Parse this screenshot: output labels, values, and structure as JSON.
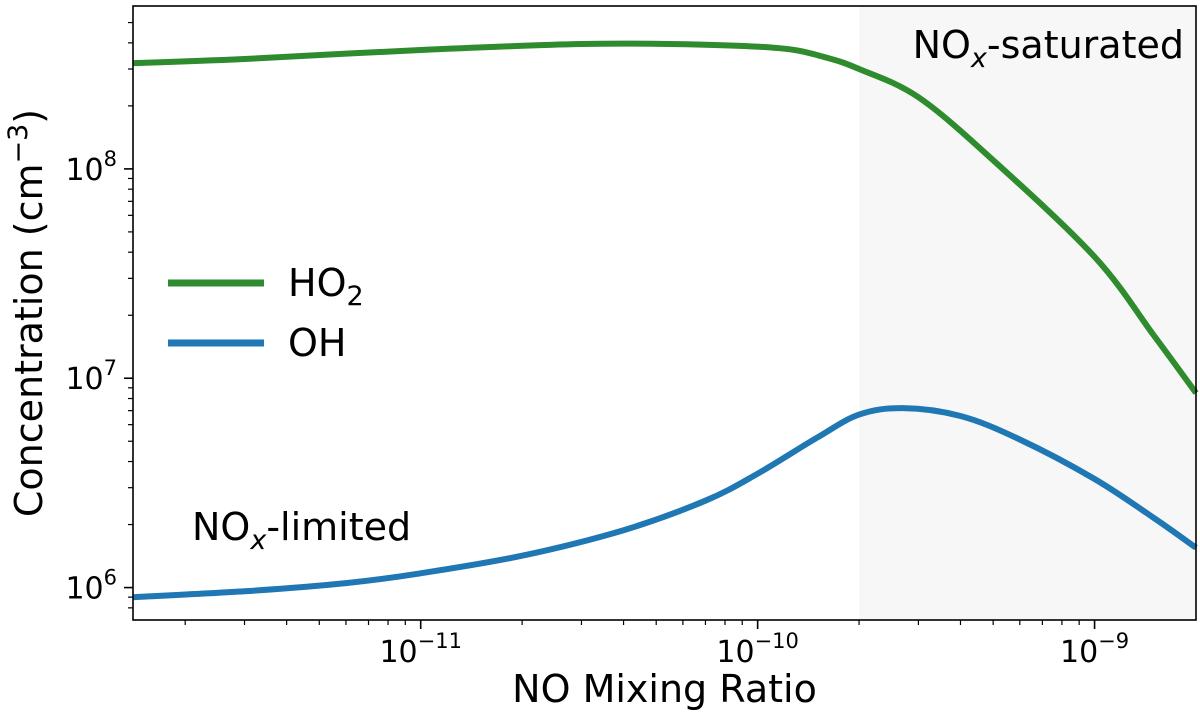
{
  "chart_data": {
    "type": "line",
    "xscale": "log",
    "yscale": "log",
    "xlabel": "NO Mixing Ratio",
    "ylabel_main": "Concentration (cm",
    "ylabel_sup": "−3",
    "ylabel_close": ")",
    "xlim": [
      1.4e-12,
      2e-09
    ],
    "ylim": [
      700000,
      600000000
    ],
    "xticks": [
      {
        "value": 1e-11,
        "base": "10",
        "exp": "−11"
      },
      {
        "value": 1e-10,
        "base": "10",
        "exp": "−10"
      },
      {
        "value": 1e-09,
        "base": "10",
        "exp": "−9"
      }
    ],
    "yticks": [
      {
        "value": 1000000,
        "base": "10",
        "exp": "6"
      },
      {
        "value": 10000000,
        "base": "10",
        "exp": "7"
      },
      {
        "value": 100000000,
        "base": "10",
        "exp": "8"
      }
    ],
    "shaded_region": {
      "x_from": 2e-10,
      "x_to": 2e-09,
      "color": "#f7f7f7"
    },
    "annotations": [
      {
        "id": "saturated",
        "main": "NO",
        "sub": "x",
        "rest": "-saturated"
      },
      {
        "id": "limited",
        "main": "NO",
        "sub": "x",
        "rest": "-limited"
      }
    ],
    "series": [
      {
        "name": "HO2",
        "label_main": "HO",
        "label_sub": "2",
        "color": "#2e8b2e",
        "x": [
          1.4e-12,
          3e-12,
          1e-11,
          3e-11,
          7e-11,
          1.2e-10,
          1.6e-10,
          2e-10,
          3e-10,
          5e-10,
          1e-09,
          1.5e-09,
          2e-09
        ],
        "y": [
          320000000,
          335000000,
          370000000,
          395000000,
          392000000,
          375000000,
          340000000,
          300000000,
          220000000,
          110000000,
          38000000,
          16000000,
          8500000
        ]
      },
      {
        "name": "OH",
        "label_main": "OH",
        "label_sub": "",
        "color": "#1f77b4",
        "x": [
          1.4e-12,
          3e-12,
          6e-12,
          1e-11,
          2e-11,
          4e-11,
          7e-11,
          1e-10,
          1.5e-10,
          2e-10,
          2.7e-10,
          4e-10,
          6e-10,
          1e-09,
          1.5e-09,
          2e-09
        ],
        "y": [
          900000,
          960000,
          1050000,
          1170000,
          1420000,
          1880000,
          2600000,
          3500000,
          5200000,
          6700000,
          7200000,
          6600000,
          5100000,
          3300000,
          2150000,
          1550000
        ]
      }
    ]
  }
}
